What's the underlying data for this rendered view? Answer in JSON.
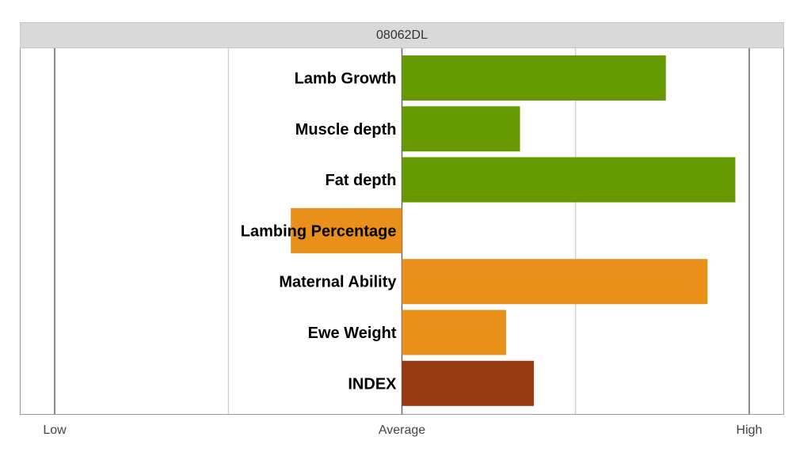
{
  "chart_data": {
    "type": "bar",
    "orientation": "horizontal",
    "title": "08062DL",
    "categories": [
      "Lamb Growth",
      "Muscle depth",
      "Fat depth",
      "Lambing Percentage",
      "Maternal Ability",
      "Ewe Weight",
      "INDEX"
    ],
    "values": [
      0.76,
      0.34,
      0.96,
      -0.32,
      0.88,
      0.3,
      0.38
    ],
    "colors": [
      "#669900",
      "#669900",
      "#669900",
      "#e8901a",
      "#e8901a",
      "#e8901a",
      "#953a11"
    ],
    "xlim": [
      -1,
      1
    ],
    "tick_values": [
      -1,
      0,
      1
    ],
    "tick_labels": [
      "Low",
      "Average",
      "High"
    ],
    "gridline_values": [
      -1,
      -0.5,
      0,
      0.5,
      1
    ],
    "grid": true,
    "legend": "none"
  }
}
